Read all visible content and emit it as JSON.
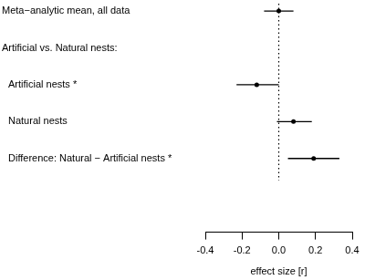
{
  "chart_data": {
    "type": "forest",
    "categories": [
      "Meta−analytic mean, all data",
      "Artificial vs. Natural nests:",
      "Artificial nests *",
      "Natural nests",
      "Difference: Natural − Artificial nests *"
    ],
    "values": [
      0.0,
      null,
      -0.12,
      0.08,
      0.19
    ],
    "ci_low": [
      -0.08,
      null,
      -0.23,
      -0.01,
      0.05
    ],
    "ci_high": [
      0.08,
      null,
      0.0,
      0.18,
      0.33
    ],
    "x_label": "effect size [r]",
    "xlim": [
      -0.4,
      0.4
    ],
    "xticks": [
      -0.4,
      -0.2,
      {
        "value": 0,
        "label": "0.0"
      },
      0.2,
      0.4
    ],
    "reference_line": 0,
    "color": "#000000",
    "grid": false
  }
}
